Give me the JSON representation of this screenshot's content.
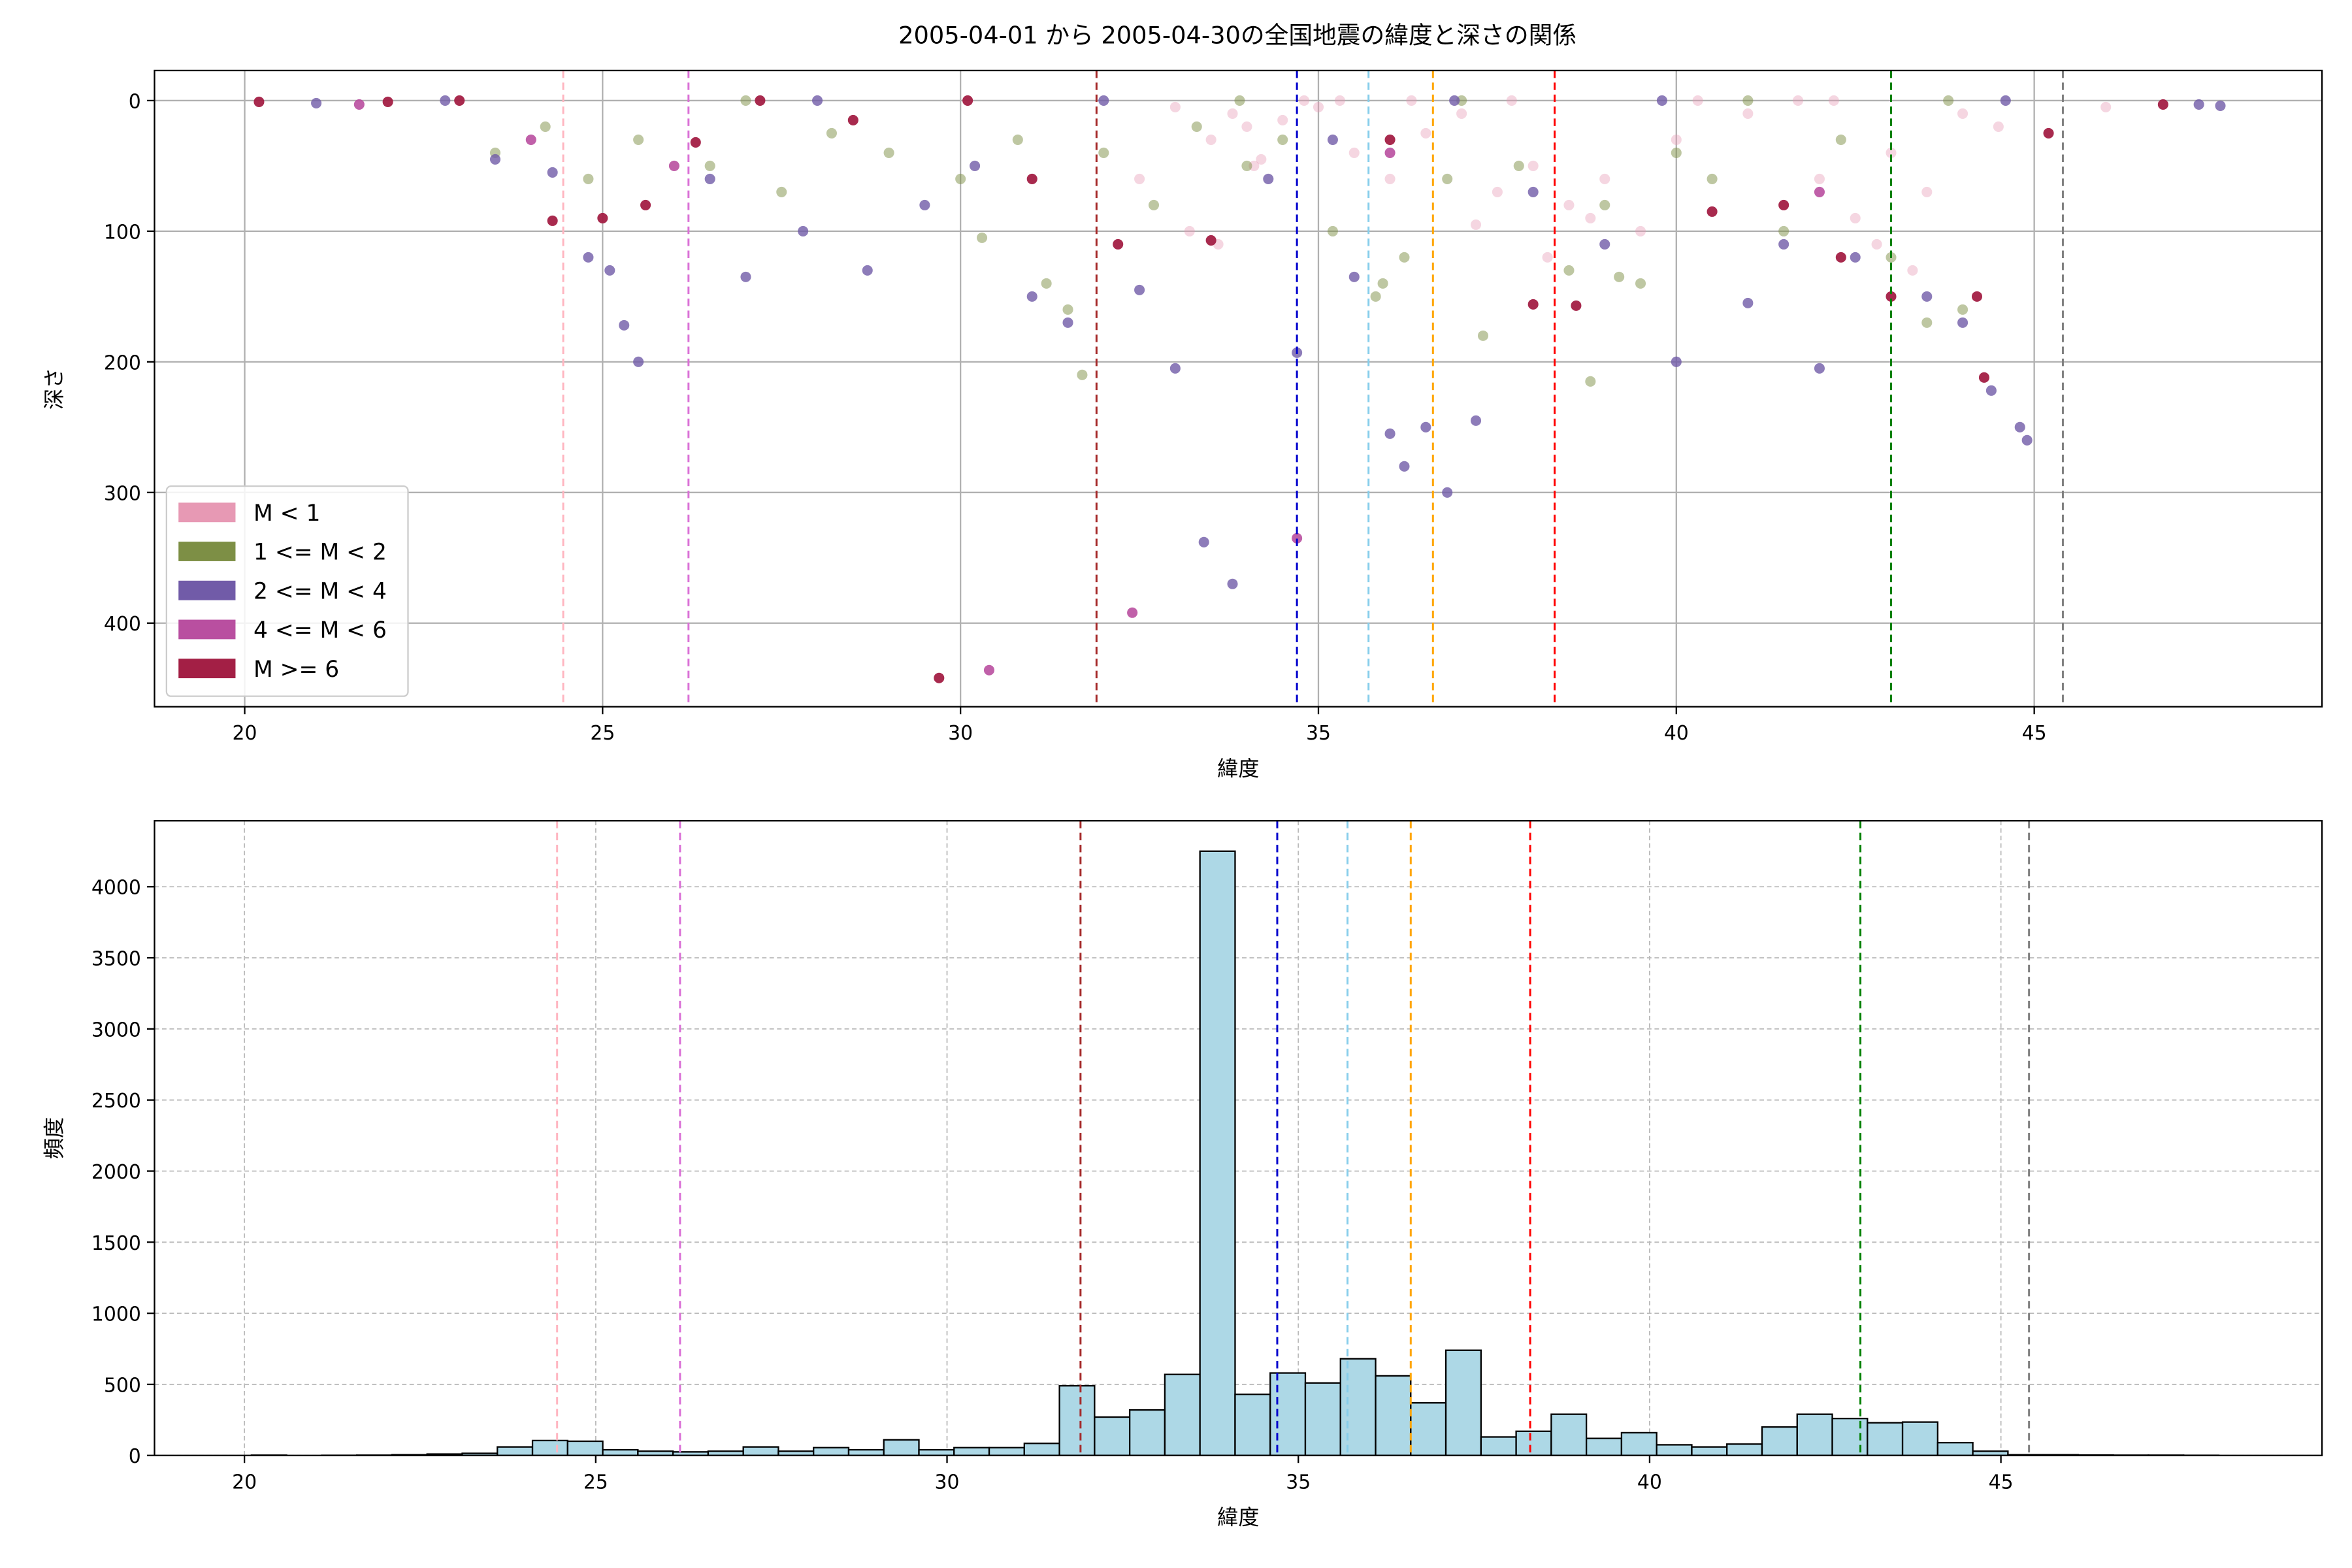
{
  "chart_data": [
    {
      "type": "scatter",
      "title": "2005-04-01 から 2005-04-30の全国地震の緯度と深さの関係",
      "xlabel": "緯度",
      "ylabel": "深さ",
      "xlim": [
        18.74,
        49.02
      ],
      "ylim": [
        464,
        -23
      ],
      "xticks": [
        20,
        25,
        30,
        35,
        40,
        45
      ],
      "yticks": [
        0,
        100,
        200,
        300,
        400
      ],
      "grid": true,
      "legend": "lower left",
      "reference_lines": {
        "x": [
          24.45,
          26.2,
          31.9,
          34.7,
          35.7,
          36.6,
          38.3,
          43.0,
          45.4
        ],
        "colors": [
          "#ffb6c1",
          "#da70d6",
          "#a52a2a",
          "#0000cd",
          "#87ceeb",
          "#ffa500",
          "#ff0000",
          "#008000",
          "#808080"
        ]
      },
      "series": [
        {
          "name": "M < 1",
          "color": "#e799b4",
          "alpha": 0.4,
          "x": [
            32.5,
            33,
            33.5,
            33.8,
            34,
            34.2,
            34.5,
            35,
            35.5,
            36,
            36.5,
            37,
            37.5,
            38,
            38.5,
            39,
            39.5,
            40,
            41,
            42,
            42.5,
            43,
            43.5,
            44,
            44.5,
            46,
            33.2,
            33.6,
            34.1,
            37.2,
            38.2,
            38.8,
            42.8,
            43.3,
            34.8,
            35.3,
            36.3,
            37.7,
            40.3,
            41.7,
            42.2
          ],
          "y": [
            60,
            5,
            30,
            10,
            20,
            45,
            15,
            5,
            40,
            60,
            25,
            10,
            70,
            50,
            80,
            60,
            100,
            30,
            10,
            60,
            90,
            40,
            70,
            10,
            20,
            5,
            100,
            110,
            50,
            95,
            120,
            90,
            110,
            130,
            0,
            0,
            0,
            0,
            0,
            0,
            0
          ]
        },
        {
          "name": "1 <= M < 2",
          "color": "#7d8f45",
          "alpha": 0.5,
          "x": [
            23.5,
            24.2,
            24.8,
            25.5,
            26.5,
            27.5,
            28.2,
            29,
            30,
            30.8,
            31.2,
            31.5,
            32,
            32.7,
            33.3,
            34,
            34.5,
            35.2,
            35.8,
            36.2,
            36.8,
            37.3,
            37.8,
            38.5,
            39,
            39.5,
            40,
            40.5,
            41.5,
            42.3,
            43,
            43.5,
            44,
            30.3,
            31.7,
            38.8,
            39.2,
            35.9,
            27,
            33.9,
            37,
            41,
            43.8
          ],
          "y": [
            40,
            20,
            60,
            30,
            50,
            70,
            25,
            40,
            60,
            30,
            140,
            160,
            40,
            80,
            20,
            50,
            30,
            100,
            150,
            120,
            60,
            180,
            50,
            130,
            80,
            140,
            40,
            60,
            100,
            30,
            120,
            170,
            160,
            105,
            210,
            215,
            135,
            140,
            0,
            0,
            0,
            0,
            0
          ]
        },
        {
          "name": "2 <= M < 4",
          "color": "#715ba8",
          "alpha": 0.8,
          "x": [
            23.5,
            24.3,
            24.8,
            25.1,
            25.3,
            25.5,
            26.5,
            27,
            27.8,
            28.7,
            29.5,
            30.2,
            31,
            31.5,
            32.5,
            33,
            33.4,
            33.8,
            34.3,
            34.7,
            35.2,
            36,
            36.2,
            36.5,
            36.8,
            37.2,
            38,
            39,
            40,
            41,
            41.5,
            42,
            42.5,
            43.5,
            44,
            44.4,
            44.8,
            44.9,
            21,
            35.5,
            22.8,
            28,
            32,
            36.9,
            39.8,
            44.6,
            47.3,
            47.6
          ],
          "y": [
            45,
            55,
            120,
            130,
            172,
            200,
            60,
            135,
            100,
            130,
            80,
            50,
            150,
            170,
            145,
            205,
            338,
            370,
            60,
            193,
            30,
            255,
            280,
            250,
            300,
            245,
            70,
            110,
            200,
            155,
            110,
            205,
            120,
            150,
            170,
            222,
            250,
            260,
            2,
            135,
            0,
            0,
            0,
            0,
            0,
            0,
            3,
            4
          ]
        },
        {
          "name": "4 <= M < 6",
          "color": "#b94fa0",
          "alpha": 0.9,
          "x": [
            21.6,
            24,
            26,
            30.4,
            32.4,
            34.7,
            36,
            42
          ],
          "y": [
            3,
            30,
            50,
            436,
            392,
            335,
            40,
            70
          ]
        },
        {
          "name": "M >= 6",
          "color": "#a31f45",
          "alpha": 0.95,
          "x": [
            20.2,
            22,
            24.3,
            25,
            25.6,
            26.3,
            29.7,
            31,
            32.2,
            33.5,
            36,
            38,
            38.6,
            40.5,
            41.5,
            42.3,
            43,
            44.2,
            44.3,
            45.2,
            46.8,
            28.5,
            23,
            27.2,
            30.1
          ],
          "y": [
            1,
            1,
            92,
            90,
            80,
            32,
            442,
            60,
            110,
            107,
            30,
            156,
            157,
            85,
            80,
            120,
            150,
            150,
            212,
            25,
            3,
            15,
            0,
            0,
            0
          ]
        }
      ]
    },
    {
      "type": "histogram",
      "xlabel": "緯度",
      "ylabel": "頻度",
      "xlim": [
        18.72,
        49.57
      ],
      "ylim": [
        0,
        4464
      ],
      "xticks": [
        20,
        25,
        30,
        35,
        40,
        45
      ],
      "yticks": [
        0,
        500,
        1000,
        1500,
        2000,
        2500,
        3000,
        3500,
        4000
      ],
      "grid": true,
      "color": "#add8e6",
      "edgecolor": "#000000",
      "reference_lines": {
        "x": [
          24.45,
          26.2,
          31.9,
          34.7,
          35.7,
          36.6,
          38.3,
          43.0,
          45.4
        ],
        "colors": [
          "#ffb6c1",
          "#da70d6",
          "#a52a2a",
          "#0000cd",
          "#87ceeb",
          "#ffa500",
          "#ff0000",
          "#008000",
          "#808080"
        ]
      },
      "bins": [
        20.1,
        20.6,
        21.1,
        21.6,
        22.1,
        22.6,
        23.1,
        23.6,
        24.1,
        24.6,
        25.1,
        25.6,
        26.1,
        26.6,
        27.1,
        27.6,
        28.1,
        28.6,
        29.1,
        29.6,
        30.1,
        30.6,
        31.1,
        31.6,
        32.1,
        32.6,
        33.1,
        33.6,
        34.1,
        34.6,
        35.1,
        35.6,
        36.1,
        36.6,
        37.1,
        37.6,
        38.1,
        38.6,
        39.1,
        39.6,
        40.1,
        40.6,
        41.1,
        41.6,
        42.1,
        42.6,
        43.1,
        43.6,
        44.1,
        44.6,
        45.1,
        45.6,
        46.1,
        46.6,
        47.1,
        47.6,
        48.1
      ],
      "counts": [
        2,
        0,
        1,
        2,
        5,
        10,
        15,
        60,
        105,
        100,
        40,
        30,
        25,
        30,
        60,
        30,
        55,
        40,
        110,
        40,
        55,
        55,
        85,
        490,
        270,
        320,
        570,
        4250,
        430,
        580,
        510,
        680,
        560,
        370,
        740,
        130,
        170,
        290,
        120,
        160,
        75,
        60,
        80,
        200,
        290,
        260,
        230,
        235,
        90,
        30,
        5,
        5,
        3,
        2,
        2,
        1
      ]
    }
  ]
}
